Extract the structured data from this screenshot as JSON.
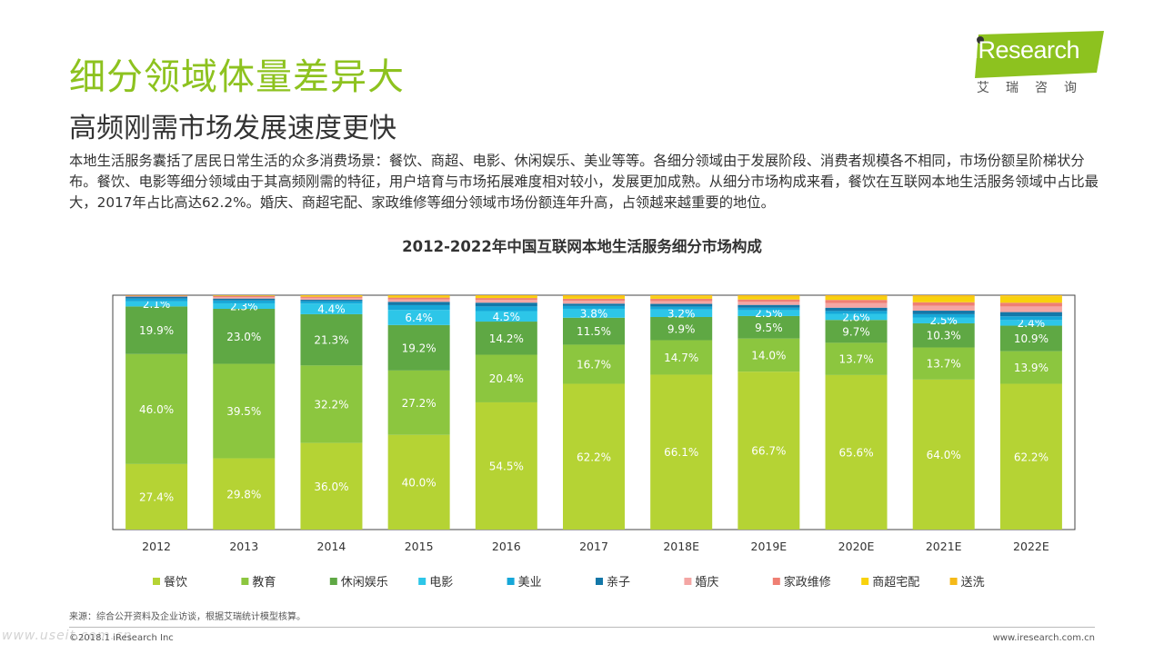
{
  "header": {
    "title": "细分领域体量差异大",
    "subtitle": "高频刚需市场发展速度更快",
    "paragraph": "本地生活服务囊括了居民日常生活的众多消费场景：餐饮、商超、电影、休闲娱乐、美业等等。各细分领域由于发展阶段、消费者规模各不相同，市场份额呈阶梯状分布。餐饮、电影等细分领域由于其高频刚需的特征，用户培育与市场拓展难度相对较小，发展更加成熟。从细分市场构成来看，餐饮在互联网本地生活服务领域中占比最大，2017年占比高达62.2%。婚庆、商超宅配、家政维修等细分领域市场份额连年升高，占领越来越重要的地位。"
  },
  "logo": {
    "text": "iResearch",
    "subtitle": "艾瑞咨询"
  },
  "footer": {
    "source": "来源：综合公开资料及企业访谈，根据艾瑞统计模型核算。",
    "copyright": "©2018.1 iResearch Inc",
    "website": "www.iresearch.com.cn",
    "watermark": "www.useit.com.cn"
  },
  "chart_data": {
    "type": "bar",
    "stacked": true,
    "percent_stacked": true,
    "title": "2012-2022年中国互联网本地生活服务细分市场构成",
    "categories": [
      "2012",
      "2013",
      "2014",
      "2015",
      "2016",
      "2017",
      "2018E",
      "2019E",
      "2020E",
      "2021E",
      "2022E"
    ],
    "ylim": [
      0,
      100
    ],
    "legend_position": "bottom",
    "series": [
      {
        "name": "餐饮",
        "color": "#b5d334",
        "label_color": "#ffffff",
        "values": [
          27.4,
          29.8,
          36.0,
          40.0,
          54.5,
          62.2,
          66.1,
          66.7,
          65.6,
          64.0,
          62.2
        ],
        "labels": [
          "27.4%",
          "29.8%",
          "36.0%",
          "40.0%",
          "54.5%",
          "62.2%",
          "66.1%",
          "66.7%",
          "65.6%",
          "64.0%",
          "62.2%"
        ]
      },
      {
        "name": "教育",
        "color": "#8cc63f",
        "label_color": "#ffffff",
        "values": [
          46.0,
          39.5,
          32.2,
          27.2,
          20.4,
          16.7,
          14.7,
          14.0,
          13.7,
          13.7,
          13.9
        ],
        "labels": [
          "46.0%",
          "39.5%",
          "32.2%",
          "27.2%",
          "20.4%",
          "16.7%",
          "14.7%",
          "14.0%",
          "13.7%",
          "13.7%",
          "13.9%"
        ]
      },
      {
        "name": "休闲娱乐",
        "color": "#5fa844",
        "label_color": "#ffffff",
        "values": [
          19.9,
          23.0,
          21.3,
          19.2,
          14.2,
          11.5,
          9.9,
          9.5,
          9.7,
          10.3,
          10.9
        ],
        "labels": [
          "19.9%",
          "23.0%",
          "21.3%",
          "19.2%",
          "14.2%",
          "11.5%",
          "9.9%",
          "9.5%",
          "9.7%",
          "10.3%",
          "10.9%"
        ]
      },
      {
        "name": "电影",
        "color": "#2dc6e8",
        "label_color": "#ffffff",
        "values": [
          2.1,
          2.3,
          4.4,
          6.4,
          4.5,
          3.8,
          3.2,
          2.5,
          2.6,
          2.5,
          2.4
        ],
        "labels": [
          "2.1%",
          "2.3%",
          "4.4%",
          "6.4%",
          "4.5%",
          "3.8%",
          "3.2%",
          "2.5%",
          "2.6%",
          "2.5%",
          "2.4%"
        ]
      },
      {
        "name": "美业",
        "color": "#16a7d8",
        "label_color": "#ffffff",
        "values": [
          1.2,
          1.2,
          1.0,
          2.0,
          2.0,
          1.2,
          1.2,
          1.0,
          1.2,
          1.4,
          1.6
        ],
        "labels": []
      },
      {
        "name": "亲子",
        "color": "#1377a8",
        "label_color": "#ffffff",
        "values": [
          0.8,
          0.8,
          0.6,
          1.4,
          1.6,
          1.0,
          1.2,
          1.2,
          1.4,
          1.5,
          1.8
        ],
        "labels": []
      },
      {
        "name": "婚庆",
        "color": "#f4a6a4",
        "label_color": "#ffffff",
        "values": [
          0.2,
          0.6,
          0.8,
          1.0,
          1.2,
          1.2,
          1.2,
          1.3,
          2.0,
          2.1,
          2.4
        ],
        "labels": []
      },
      {
        "name": "家政维修",
        "color": "#ef7f73",
        "label_color": "#ffffff",
        "values": [
          0.2,
          0.5,
          0.5,
          0.8,
          0.8,
          0.9,
          1.0,
          1.0,
          1.3,
          1.5,
          1.6
        ],
        "labels": []
      },
      {
        "name": "商超宅配",
        "color": "#f8d20c",
        "label_color": "#ffffff",
        "values": [
          0.1,
          0.2,
          0.4,
          0.6,
          0.8,
          0.9,
          1.0,
          1.2,
          1.4,
          2.4,
          2.7
        ],
        "labels": []
      },
      {
        "name": "送洗",
        "color": "#f5b918",
        "label_color": "#ffffff",
        "values": [
          0.1,
          0.1,
          0.2,
          0.4,
          0.4,
          0.6,
          0.5,
          0.6,
          0.6,
          0.6,
          0.5
        ],
        "labels": []
      }
    ]
  }
}
